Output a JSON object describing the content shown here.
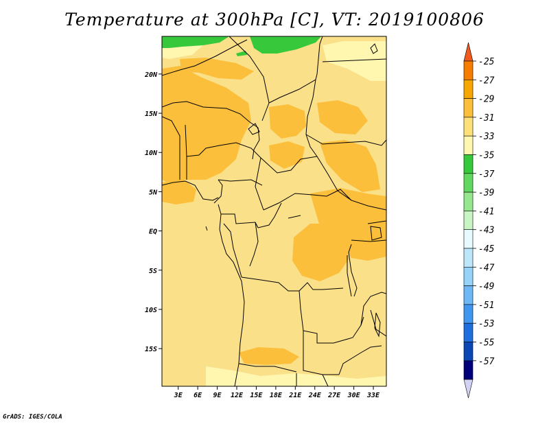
{
  "title": "Temperature at 300hPa [C], VT: 2019100806",
  "credit": "GrADS: IGES/COLA",
  "map": {
    "lon_labels": [
      "3E",
      "6E",
      "9E",
      "12E",
      "15E",
      "18E",
      "21E",
      "24E",
      "27E",
      "30E",
      "33E"
    ],
    "lon_values": [
      3,
      6,
      9,
      12,
      15,
      18,
      21,
      24,
      27,
      30,
      33
    ],
    "lat_labels": [
      "20N",
      "15N",
      "10N",
      "5N",
      "EQ",
      "5S",
      "10S",
      "15S"
    ],
    "lat_values": [
      20,
      15,
      10,
      5,
      0,
      -5,
      -10,
      -15
    ],
    "lon_range": [
      0.5,
      35
    ],
    "lat_range": [
      -19.8,
      24.8
    ]
  },
  "colorbar": {
    "labels": [
      "-25",
      "-27",
      "-29",
      "-31",
      "-33",
      "-35",
      "-37",
      "-39",
      "-41",
      "-43",
      "-45",
      "-47",
      "-49",
      "-51",
      "-53",
      "-55",
      "-57"
    ],
    "colors": [
      "#f05a1e",
      "#f57d00",
      "#f6a800",
      "#fbbf3c",
      "#fde07a",
      "#fff6b0",
      "#37c83c",
      "#63d860",
      "#96e68d",
      "#c8f5c3",
      "#e6faff",
      "#bee6fa",
      "#96d2fa",
      "#6eb9f5",
      "#4196f0",
      "#1e6edc",
      "#0a46b4",
      "#000078",
      "#d2d2f5"
    ]
  },
  "palette": {
    "background": "#fbe08a",
    "warm": "#fbbf3c",
    "cool": "#fff6b0",
    "green": "#37c83c"
  }
}
